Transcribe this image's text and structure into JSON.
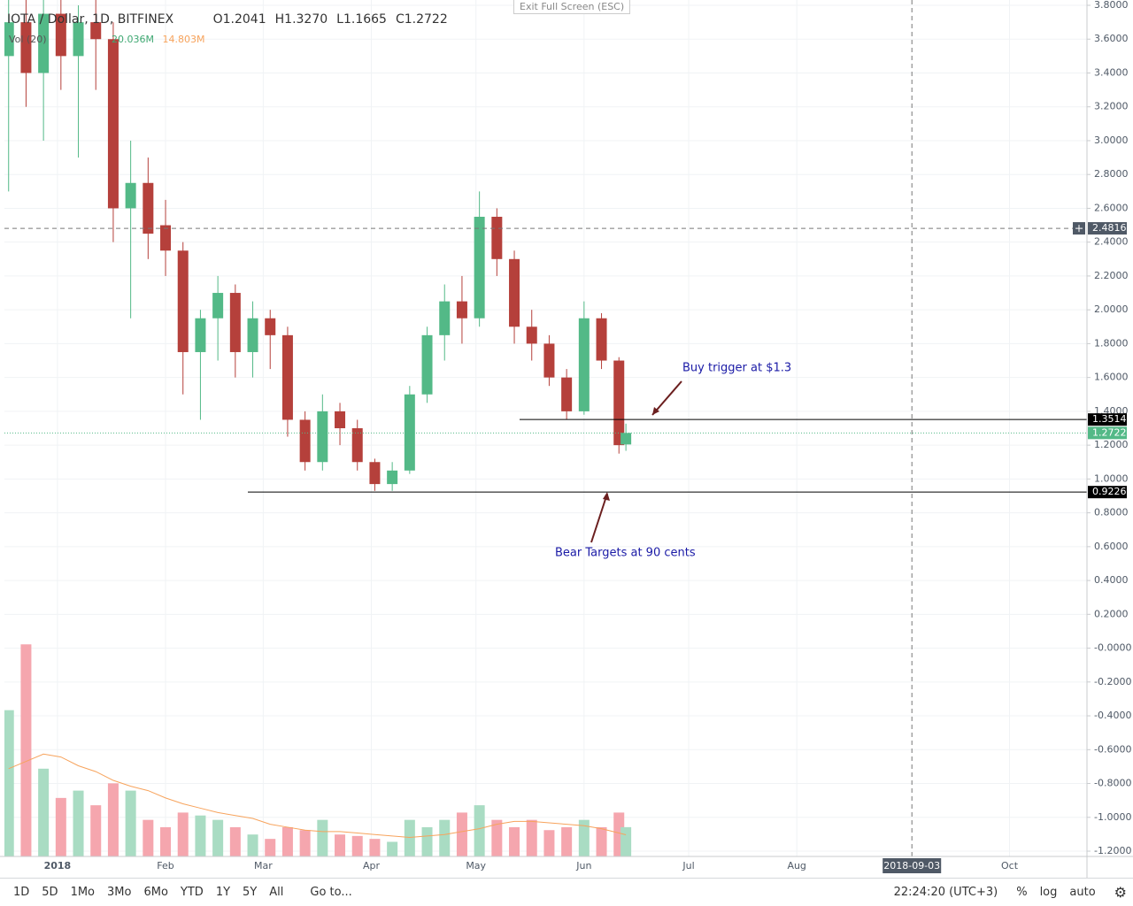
{
  "header": {
    "title": "IOTA / Dollar, 1D, BITFINEX",
    "ohlc": [
      {
        "key": "O",
        "value": "1.2041"
      },
      {
        "key": "H",
        "value": "1.3270"
      },
      {
        "key": "L",
        "value": "1.1665"
      },
      {
        "key": "C",
        "value": "1.2722"
      }
    ],
    "volume_label": "Vol (20)",
    "volume_value": "20.036M",
    "volume_ma_value": "14.803M",
    "tooltip": "Exit Full Screen (ESC)"
  },
  "chart_data": {
    "type": "candlestick",
    "up_color": "#53b987",
    "down_color": "#b5403b",
    "grid": true,
    "x": [
      -14,
      -9,
      -4,
      1,
      6,
      11,
      16,
      21,
      26,
      31,
      36,
      41,
      46,
      51,
      56,
      61,
      66,
      71,
      76,
      81,
      86,
      91,
      96,
      101,
      106,
      111,
      116,
      121,
      126,
      131,
      136,
      141,
      146,
      151,
      156,
      161,
      163
    ],
    "open": [
      3.5,
      3.7,
      3.4,
      3.75,
      3.5,
      3.7,
      3.6,
      2.6,
      2.75,
      2.5,
      2.35,
      1.75,
      1.95,
      2.1,
      1.75,
      1.95,
      1.85,
      1.35,
      1.1,
      1.4,
      1.3,
      1.1,
      0.97,
      1.05,
      1.5,
      1.85,
      2.05,
      1.95,
      2.55,
      2.3,
      1.9,
      1.8,
      1.6,
      1.4,
      1.95,
      1.7,
      1.2041
    ],
    "high": [
      3.9,
      3.9,
      3.85,
      3.9,
      3.8,
      3.85,
      3.7,
      3.0,
      2.9,
      2.65,
      2.4,
      2.0,
      2.2,
      2.15,
      2.05,
      2.0,
      1.9,
      1.4,
      1.5,
      1.45,
      1.35,
      1.12,
      1.1,
      1.55,
      1.9,
      2.15,
      2.2,
      2.7,
      2.6,
      2.35,
      2.0,
      1.85,
      1.65,
      2.05,
      1.98,
      1.72,
      1.327
    ],
    "low": [
      2.7,
      3.2,
      3.0,
      3.3,
      2.9,
      3.3,
      2.4,
      1.95,
      2.3,
      2.2,
      1.5,
      1.35,
      1.7,
      1.6,
      1.6,
      1.65,
      1.25,
      1.05,
      1.05,
      1.2,
      1.05,
      0.93,
      0.93,
      1.03,
      1.45,
      1.7,
      1.8,
      1.9,
      2.2,
      1.8,
      1.7,
      1.55,
      1.35,
      1.38,
      1.65,
      1.15,
      1.1665
    ],
    "close": [
      3.7,
      3.4,
      3.75,
      3.5,
      3.7,
      3.6,
      2.6,
      2.75,
      2.45,
      2.35,
      1.75,
      1.95,
      2.1,
      1.75,
      1.95,
      1.85,
      1.35,
      1.1,
      1.4,
      1.3,
      1.1,
      0.97,
      1.05,
      1.5,
      1.85,
      2.05,
      1.95,
      2.55,
      2.3,
      1.9,
      1.8,
      1.6,
      1.4,
      1.95,
      1.7,
      1.2,
      1.2722
    ],
    "volume": {
      "axis": "y2",
      "up_color": "#a9dcc3",
      "down_color": "#f5a6ae",
      "ma_color": "#f7a35c",
      "values": [
        100,
        145,
        60,
        40,
        45,
        35,
        50,
        45,
        25,
        20,
        30,
        28,
        25,
        20,
        15,
        12,
        20,
        18,
        25,
        15,
        14,
        12,
        10,
        25,
        20,
        25,
        30,
        35,
        25,
        20,
        25,
        18,
        20,
        25,
        20,
        30,
        20.036
      ],
      "ma": [
        60,
        65,
        70,
        68,
        62,
        58,
        52,
        48,
        45,
        40,
        36,
        33,
        30,
        28,
        26,
        22,
        20,
        18,
        17,
        17,
        16,
        15,
        14,
        13,
        14,
        15,
        17,
        19,
        22,
        24,
        24,
        23,
        22,
        21,
        19,
        16,
        14.803
      ]
    },
    "y2lim": [
      0,
      150
    ],
    "xlim": [
      -15.2,
      295.2
    ],
    "xticks": [
      {
        "value": 0,
        "label": "2018"
      },
      {
        "value": 31,
        "label": "Feb"
      },
      {
        "value": 59,
        "label": "Mar"
      },
      {
        "value": 90,
        "label": "Apr"
      },
      {
        "value": 120,
        "label": "May"
      },
      {
        "value": 151,
        "label": "Jun"
      },
      {
        "value": 181,
        "label": "Jul"
      },
      {
        "value": 212,
        "label": "Aug"
      },
      {
        "value": 273,
        "label": "Oct"
      }
    ],
    "ylim": [
      -1.2313,
      3.8314
    ],
    "yticks": [
      {
        "value": 3.8,
        "label": "3.8000"
      },
      {
        "value": 3.6,
        "label": "3.6000"
      },
      {
        "value": 3.4,
        "label": "3.4000"
      },
      {
        "value": 3.2,
        "label": "3.2000"
      },
      {
        "value": 3,
        "label": "3.0000"
      },
      {
        "value": 2.8,
        "label": "2.8000"
      },
      {
        "value": 2.6,
        "label": "2.6000"
      },
      {
        "value": 2.4,
        "label": "2.4000"
      },
      {
        "value": 2.2,
        "label": "2.2000"
      },
      {
        "value": 2,
        "label": "2.0000"
      },
      {
        "value": 1.8,
        "label": "1.8000"
      },
      {
        "value": 1.6,
        "label": "1.6000"
      },
      {
        "value": 1.4,
        "label": "1.4000"
      },
      {
        "value": 1.2,
        "label": "1.2000"
      },
      {
        "value": 1,
        "label": "1.0000"
      },
      {
        "value": 0.8,
        "label": "0.8000"
      },
      {
        "value": 0.6,
        "label": "0.6000"
      },
      {
        "value": 0.4,
        "label": "0.4000"
      },
      {
        "value": 0.2,
        "label": "0.2000"
      },
      {
        "value": 0,
        "label": "-0.0000"
      },
      {
        "value": -0.2,
        "label": "-0.2000"
      },
      {
        "value": -0.4,
        "label": "-0.4000"
      },
      {
        "value": -0.6,
        "label": "-0.6000"
      },
      {
        "value": -0.8,
        "label": "-0.8000"
      },
      {
        "value": -1,
        "label": "-1.0000"
      },
      {
        "value": -1.2,
        "label": "-1.2000"
      }
    ],
    "levels": [
      {
        "value": 1.3514,
        "label": "1.3514"
      },
      {
        "value": 0.9226,
        "label": "0.9226"
      }
    ],
    "last_price": {
      "value": 1.2722,
      "label": "1.2722"
    },
    "crosshair": {
      "x": {
        "value": 245,
        "label": "2018-09-03"
      },
      "y": {
        "value": 2.4816,
        "label": "2.4816"
      }
    },
    "annotations": [
      "Buy trigger at $1.3",
      "Bear Targets at 90 cents"
    ]
  },
  "toolbar": {
    "ranges": [
      "1D",
      "5D",
      "1Mo",
      "3Mo",
      "6Mo",
      "YTD",
      "1Y",
      "5Y",
      "All"
    ],
    "goto": "Go to...",
    "clock": "22:24:20 (UTC+3)",
    "options": [
      "%",
      "log",
      "auto"
    ]
  }
}
